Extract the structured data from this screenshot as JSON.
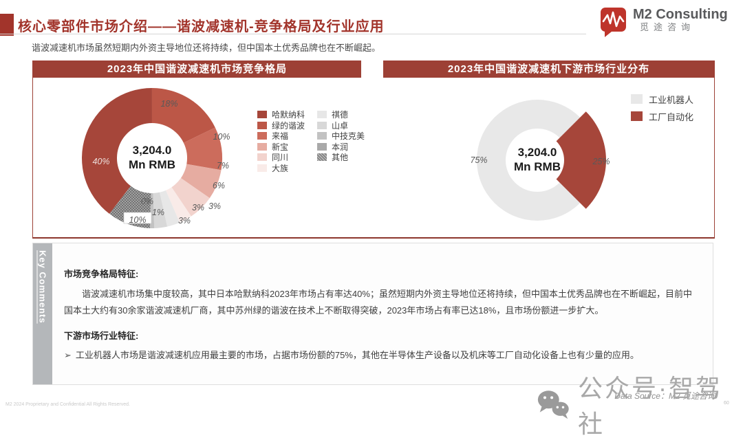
{
  "header": {
    "title": "核心零部件市场介绍——谐波减速机-竞争格局及行业应用",
    "subtitle": "谐波减速机市场虽然短期内外资主导地位还将持续，但中国本土优秀品牌也在不断崛起。",
    "logo": {
      "name": "M2 Consulting",
      "cn": "觅途咨询"
    }
  },
  "chart_data": [
    {
      "type": "donut",
      "title": "2023年中国谐波减速机市场竞争格局",
      "center_label": {
        "line1": "3,204.0",
        "line2": "Mn RMB"
      },
      "start_angle": 217.4,
      "legend_position": "right, two columns",
      "series": [
        {
          "name": "哈默纳科",
          "value": 40,
          "color": "#A6463A",
          "label_at": [
            99,
            122
          ],
          "label_color": "#EDDFDC"
        },
        {
          "name": "绿的谐波",
          "value": 18,
          "color": "#BC5747",
          "label_at": [
            198,
            38
          ]
        },
        {
          "name": "来福",
          "value": 10,
          "color": "#CC6C5C",
          "label_at": [
            274,
            86
          ]
        },
        {
          "name": "新宝",
          "value": 7,
          "color": "#E6ACA1",
          "label_at": [
            276,
            128
          ]
        },
        {
          "name": "同川",
          "value": 6,
          "color": "#F2D3CD",
          "label_at": [
            270,
            157
          ]
        },
        {
          "name": "大族",
          "value": 3,
          "color": "#F9EBE8",
          "label_at": [
            264,
            187
          ]
        },
        {
          "name": "祺德",
          "value": 3,
          "color": "#E7E7E7",
          "label_at": [
            240,
            189
          ]
        },
        {
          "name": "山卓",
          "value": 3,
          "color": "#D8D8D8",
          "label_at": [
            220,
            208
          ]
        },
        {
          "name": "中技克美",
          "value": 1,
          "color": "#C2C2C2",
          "label_at": [
            182,
            196
          ]
        },
        {
          "name": "本润",
          "value": 0,
          "color": "#A9A9A9",
          "label_at": [
            166,
            180
          ]
        },
        {
          "name": "其他",
          "value": 10,
          "color": "hatch",
          "label_at": [
            152,
            207
          ],
          "label_boxed": true
        }
      ],
      "legend_columns": [
        [
          {
            "label": "哈默纳科",
            "color": "#A6463A"
          },
          {
            "label": "绿的谐波",
            "color": "#BC5747"
          },
          {
            "label": "来福",
            "color": "#CC6C5C"
          },
          {
            "label": "新宝",
            "color": "#E6ACA1"
          },
          {
            "label": "同川",
            "color": "#F2D3CD"
          },
          {
            "label": "大族",
            "color": "#F9EBE8"
          }
        ],
        [
          {
            "label": "祺德",
            "color": "#E7E7E7"
          },
          {
            "label": "山卓",
            "color": "#D8D8D8"
          },
          {
            "label": "中技克美",
            "color": "#C2C2C2"
          },
          {
            "label": "本润",
            "color": "#A9A9A9"
          },
          {
            "label": "其他",
            "color": "hatch"
          }
        ]
      ]
    },
    {
      "type": "donut",
      "title": "2023年中国谐波减速机下游市场行业分布",
      "center_label": {
        "line1": "3,204.0",
        "line2": "Mn RMB"
      },
      "start_angle": 135,
      "legend_position": "top-right",
      "series": [
        {
          "name": "工业机器人",
          "value": 75,
          "color": "#E8E8E8",
          "label_at": [
            139,
            120
          ]
        },
        {
          "name": "工厂自动化",
          "value": 25,
          "color": "#A6463A",
          "label_at": [
            317,
            122
          ],
          "exploded": true
        }
      ],
      "legend_columns": [
        [
          {
            "label": "工业机器人",
            "color": "#E8E8E8"
          },
          {
            "label": "工厂自动化",
            "color": "#A6463A"
          }
        ]
      ]
    }
  ],
  "comments": {
    "tab": "Key Comments",
    "s1_title": "市场竞争格局特征:",
    "s1_body": "谐波减速机市场集中度较高，其中日本哈默纳科2023年市场占有率达40%；虽然短期内外资主导地位还将持续，但中国本土优秀品牌也在不断崛起，目前中国本土大约有30余家谐波减速机厂商，其中苏州绿的谐波在技术上不断取得突破，2023年市场占有率已达18%，且市场份额进一步扩大。",
    "s2_title": "下游市场行业特征:",
    "s2_bullet_marker": "➢",
    "s2_bullet": "工业机器人市场是谐波减速机应用最主要的市场，占据市场份额的75%，其他在半导体生产设备以及机床等工厂自动化设备上也有少量的应用。"
  },
  "footer": {
    "copyright": "M2 2024 Proprietary and Confidential All Rights Reserved.",
    "data_source": "Data Source：M2 觅途咨询",
    "page_number": "60",
    "watermark": "公众号·智驾社"
  },
  "colors": {
    "banner_red": "#9D4035",
    "title_red": "#A2342B",
    "logo_red": "#BE342B",
    "sidebar_gray": "#B4B7BA",
    "label_gray": "#595959"
  }
}
